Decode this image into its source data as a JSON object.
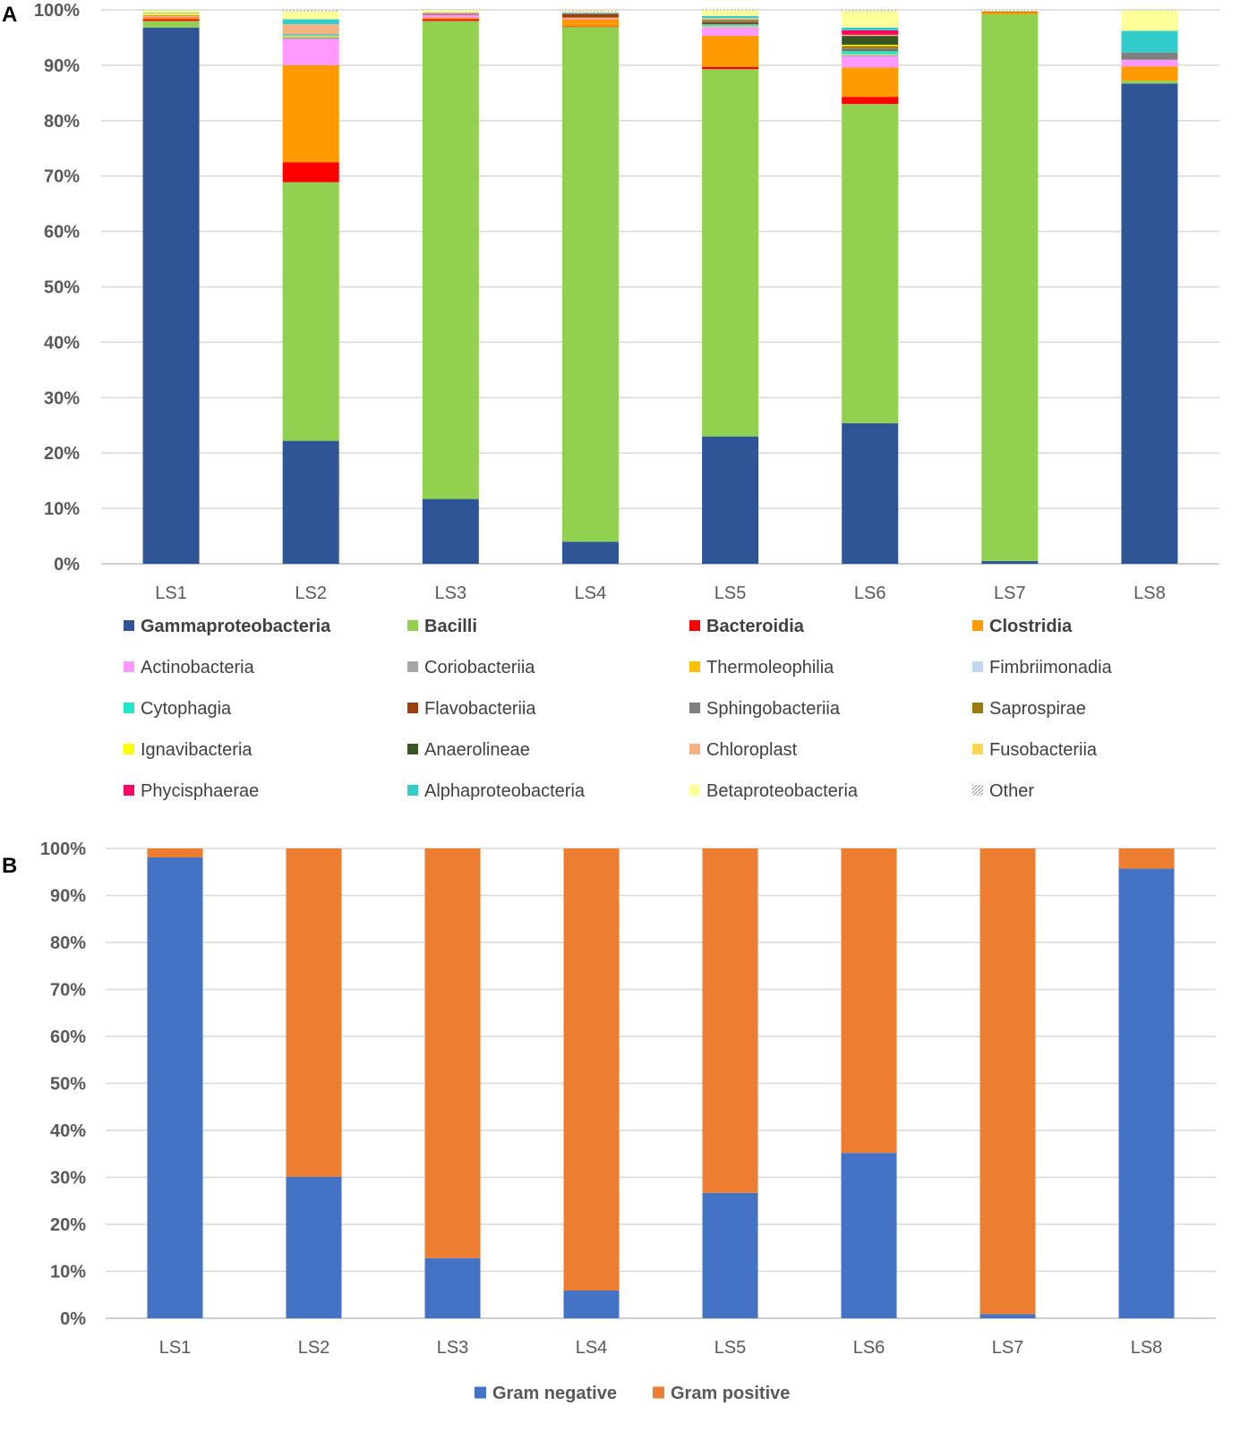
{
  "panels": {
    "a_label": "A",
    "b_label": "B"
  },
  "chart_data": [
    {
      "type": "bar",
      "stacked": true,
      "title": "",
      "panel": "A",
      "categories": [
        "LS1",
        "LS2",
        "LS3",
        "LS4",
        "LS5",
        "LS6",
        "LS7",
        "LS8"
      ],
      "ylim": [
        0,
        100
      ],
      "yticks": [
        "0%",
        "10%",
        "20%",
        "30%",
        "40%",
        "50%",
        "60%",
        "70%",
        "80%",
        "90%",
        "100%"
      ],
      "grid": true,
      "legend_position": "bottom",
      "series": [
        {
          "name": "Gammaproteobacteria",
          "color": "#2F5597",
          "bold": true,
          "values": [
            96.8,
            22.2,
            11.7,
            4.0,
            23.0,
            25.4,
            0.5,
            86.7
          ]
        },
        {
          "name": "Bacilli",
          "color": "#92D050",
          "bold": true,
          "values": [
            1.2,
            46.7,
            86.3,
            92.9,
            66.3,
            57.6,
            98.7,
            0.5
          ]
        },
        {
          "name": "Bacteroidia",
          "color": "#FF0000",
          "bold": true,
          "values": [
            0.3,
            3.6,
            0.3,
            0.1,
            0.4,
            1.3,
            0.0,
            0.0
          ]
        },
        {
          "name": "Clostridia",
          "color": "#FF9900",
          "bold": true,
          "values": [
            0.4,
            17.5,
            0.3,
            1.3,
            5.6,
            5.3,
            0.4,
            2.6
          ]
        },
        {
          "name": "Actinobacteria",
          "color": "#FF99FF",
          "bold": false,
          "values": [
            0.2,
            4.7,
            0.5,
            0.2,
            1.5,
            2.0,
            0.0,
            1.2
          ]
        },
        {
          "name": "Coriobacteriia",
          "color": "#A6A6A6",
          "bold": false,
          "values": [
            0.0,
            0.3,
            0.0,
            0.0,
            0.1,
            0.2,
            0.0,
            0.0
          ]
        },
        {
          "name": "Thermoleophilia",
          "color": "#FFC000",
          "bold": false,
          "values": [
            0.0,
            0.2,
            0.0,
            0.1,
            0.1,
            0.1,
            0.0,
            0.0
          ]
        },
        {
          "name": "Fimbriimonadia",
          "color": "#BDD7EE",
          "bold": false,
          "values": [
            0.0,
            0.1,
            0.0,
            0.0,
            0.1,
            0.1,
            0.0,
            0.0
          ]
        },
        {
          "name": "Cytophagia",
          "color": "#1DE9C8",
          "bold": false,
          "values": [
            0.0,
            0.2,
            0.0,
            0.0,
            0.3,
            0.6,
            0.0,
            0.0
          ]
        },
        {
          "name": "Flavobacteriia",
          "color": "#9C3F0F",
          "bold": false,
          "values": [
            0.1,
            0.0,
            0.1,
            0.6,
            0.4,
            0.2,
            0.1,
            0.0
          ]
        },
        {
          "name": "Sphingobacteriia",
          "color": "#7F7F7F",
          "bold": false,
          "values": [
            0.0,
            0.1,
            0.0,
            0.2,
            0.2,
            0.3,
            0.0,
            1.3
          ]
        },
        {
          "name": "Saprospirae",
          "color": "#9C7A0A",
          "bold": false,
          "values": [
            0.0,
            0.0,
            0.0,
            0.0,
            0.1,
            0.4,
            0.0,
            0.0
          ]
        },
        {
          "name": "Ignavibacteria",
          "color": "#FFFF00",
          "bold": false,
          "values": [
            0.3,
            0.0,
            0.0,
            0.0,
            0.0,
            0.2,
            0.0,
            0.0
          ]
        },
        {
          "name": "Anaerolineae",
          "color": "#375623",
          "bold": false,
          "values": [
            0.0,
            0.0,
            0.0,
            0.0,
            0.1,
            1.6,
            0.0,
            0.0
          ]
        },
        {
          "name": "Chloroplast",
          "color": "#F4B183",
          "bold": false,
          "values": [
            0.1,
            1.8,
            0.1,
            0.0,
            0.2,
            0.1,
            0.0,
            0.0
          ]
        },
        {
          "name": "Fusobacteriia",
          "color": "#FFD54F",
          "bold": false,
          "values": [
            0.0,
            0.0,
            0.0,
            0.0,
            0.1,
            0.1,
            0.0,
            0.0
          ]
        },
        {
          "name": "Phycisphaerae",
          "color": "#FF0066",
          "bold": false,
          "values": [
            0.0,
            0.0,
            0.1,
            0.0,
            0.0,
            0.8,
            0.0,
            0.0
          ]
        },
        {
          "name": "Alphaproteobacteria",
          "color": "#33CCCC",
          "bold": false,
          "values": [
            0.1,
            0.9,
            0.1,
            0.1,
            0.4,
            0.5,
            0.0,
            3.9
          ]
        },
        {
          "name": "Betaproteobacteria",
          "color": "#FFFF99",
          "bold": false,
          "values": [
            0.4,
            1.4,
            0.4,
            0.2,
            1.0,
            3.0,
            0.1,
            3.7
          ]
        },
        {
          "name": "Other",
          "color": "pattern",
          "bold": false,
          "values": [
            0.1,
            0.3,
            0.1,
            0.2,
            0.2,
            0.2,
            0.2,
            0.1
          ]
        }
      ]
    },
    {
      "type": "bar",
      "stacked": true,
      "title": "",
      "panel": "B",
      "categories": [
        "LS1",
        "LS2",
        "LS3",
        "LS4",
        "LS5",
        "LS6",
        "LS7",
        "LS8"
      ],
      "ylim": [
        0,
        100
      ],
      "yticks": [
        "0%",
        "10%",
        "20%",
        "30%",
        "40%",
        "50%",
        "60%",
        "70%",
        "80%",
        "90%",
        "100%"
      ],
      "grid": true,
      "legend_position": "bottom",
      "series": [
        {
          "name": "Gram negative",
          "color": "#4472C4",
          "values": [
            98.1,
            30.1,
            12.8,
            5.9,
            26.7,
            35.2,
            0.9,
            95.7
          ]
        },
        {
          "name": "Gram positive",
          "color": "#ED7D31",
          "values": [
            1.9,
            69.9,
            87.2,
            94.1,
            73.3,
            64.8,
            99.1,
            4.3
          ]
        }
      ]
    }
  ]
}
